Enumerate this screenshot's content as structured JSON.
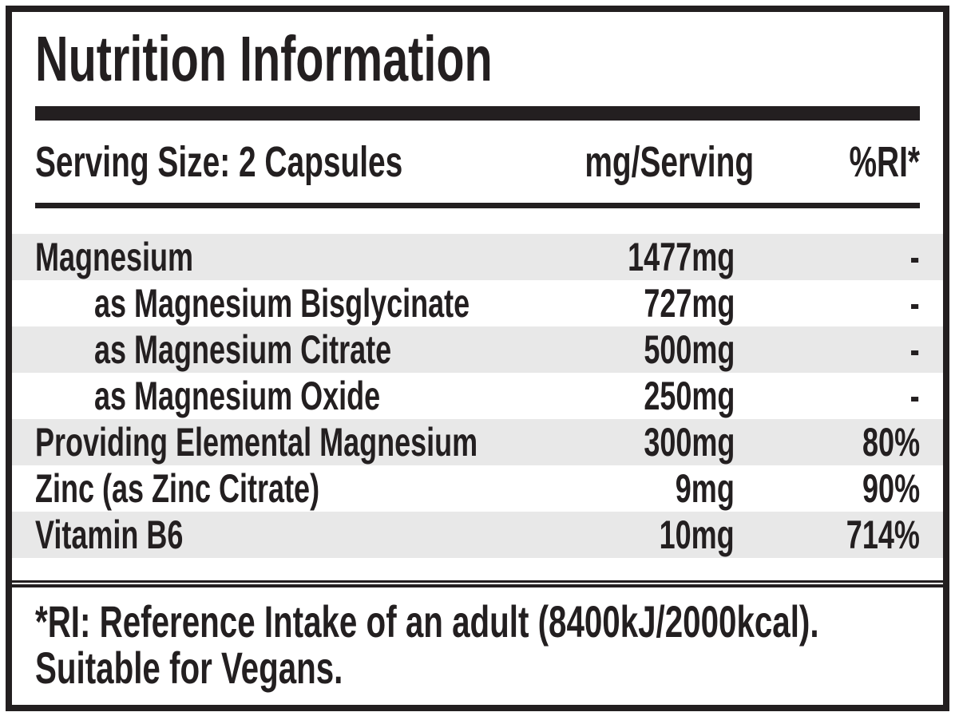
{
  "label": {
    "title": "Nutrition Information",
    "header": {
      "serving": "Serving Size: 2 Capsules",
      "amount_col": "mg/Serving",
      "ri_col": "%RI*"
    },
    "rows": [
      {
        "name": "Magnesium",
        "amount": "1477mg",
        "ri": "-",
        "indent": false,
        "shaded": true
      },
      {
        "name": "as Magnesium Bisglycinate",
        "amount": "727mg",
        "ri": "-",
        "indent": true,
        "shaded": false
      },
      {
        "name": "as Magnesium Citrate",
        "amount": "500mg",
        "ri": "-",
        "indent": true,
        "shaded": true
      },
      {
        "name": "as Magnesium Oxide",
        "amount": "250mg",
        "ri": "-",
        "indent": true,
        "shaded": false
      },
      {
        "name": "Providing Elemental Magnesium",
        "amount": "300mg",
        "ri": "80%",
        "indent": false,
        "shaded": true
      },
      {
        "name": "Zinc (as Zinc Citrate)",
        "amount": "9mg",
        "ri": "90%",
        "indent": false,
        "shaded": false
      },
      {
        "name": "Vitamin B6",
        "amount": "10mg",
        "ri": "714%",
        "indent": false,
        "shaded": true
      }
    ],
    "footnote": {
      "line1": "*RI: Reference Intake of an adult (8400kJ/2000kcal).",
      "line2": "Suitable for Vegans."
    },
    "colors": {
      "ink": "#231f20",
      "stripe": "#e8e8e8",
      "background": "#ffffff"
    }
  }
}
